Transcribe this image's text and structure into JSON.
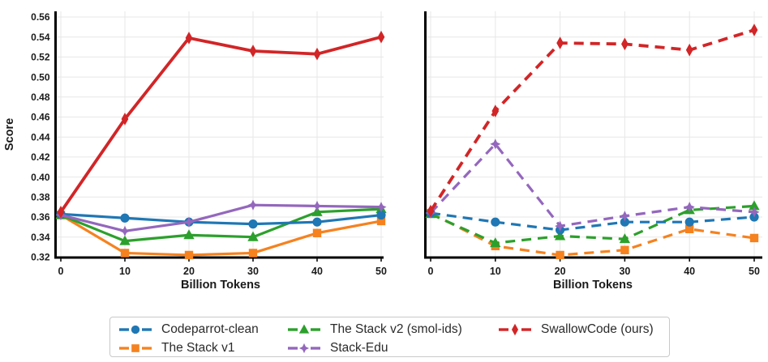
{
  "figure": {
    "ylabel": "Score",
    "xlabel": "Billion Tokens",
    "background": "#ffffff",
    "grid_color": "#e7e7e7",
    "axis_color": "#000000"
  },
  "chart_data": [
    {
      "type": "line",
      "panel": "left",
      "linestyle": "solid",
      "title": "",
      "xlabel": "Billion Tokens",
      "ylabel": "Score",
      "x": [
        0,
        10,
        20,
        30,
        40,
        50
      ],
      "xlim": [
        0,
        50
      ],
      "ylim": [
        0.32,
        0.56
      ],
      "yticks": [
        0.32,
        0.34,
        0.36,
        0.38,
        0.4,
        0.42,
        0.44,
        0.46,
        0.48,
        0.5,
        0.52,
        0.54,
        0.56
      ],
      "xticks": [
        0,
        10,
        20,
        30,
        40,
        50
      ],
      "grid": true,
      "series": [
        {
          "name": "Codeparrot-clean",
          "color": "#1f77b4",
          "marker": "circle",
          "values": [
            0.363,
            0.359,
            0.355,
            0.353,
            0.355,
            0.362
          ]
        },
        {
          "name": "The Stack v1",
          "color": "#f5821f",
          "marker": "square",
          "values": [
            0.362,
            0.324,
            0.322,
            0.324,
            0.344,
            0.356
          ]
        },
        {
          "name": "The Stack v2 (smol-ids)",
          "color": "#2ca02c",
          "marker": "triangle",
          "values": [
            0.362,
            0.336,
            0.342,
            0.34,
            0.365,
            0.368
          ]
        },
        {
          "name": "Stack-Edu",
          "color": "#9467bd",
          "marker": "star",
          "values": [
            0.362,
            0.346,
            0.355,
            0.372,
            0.371,
            0.37
          ]
        },
        {
          "name": "SwallowCode (ours)",
          "color": "#d22527",
          "marker": "diamond",
          "values": [
            0.365,
            0.458,
            0.539,
            0.526,
            0.523,
            0.54
          ]
        }
      ]
    },
    {
      "type": "line",
      "panel": "right",
      "linestyle": "dashed",
      "title": "",
      "xlabel": "Billion Tokens",
      "ylabel": "",
      "x": [
        0,
        10,
        20,
        30,
        40,
        50
      ],
      "xlim": [
        0,
        50
      ],
      "ylim": [
        0.32,
        0.56
      ],
      "yticks": [
        0.32,
        0.34,
        0.36,
        0.38,
        0.4,
        0.42,
        0.44,
        0.46,
        0.48,
        0.5,
        0.52,
        0.54,
        0.56
      ],
      "xticks": [
        0,
        10,
        20,
        30,
        40,
        50
      ],
      "grid": true,
      "series": [
        {
          "name": "Codeparrot-clean",
          "color": "#1f77b4",
          "marker": "circle",
          "values": [
            0.364,
            0.355,
            0.347,
            0.355,
            0.355,
            0.36
          ]
        },
        {
          "name": "The Stack v1",
          "color": "#f5821f",
          "marker": "square",
          "values": [
            0.364,
            0.331,
            0.322,
            0.327,
            0.348,
            0.339
          ]
        },
        {
          "name": "The Stack v2 (smol-ids)",
          "color": "#2ca02c",
          "marker": "triangle",
          "values": [
            0.363,
            0.334,
            0.341,
            0.338,
            0.367,
            0.371
          ]
        },
        {
          "name": "Stack-Edu",
          "color": "#9467bd",
          "marker": "star",
          "values": [
            0.364,
            0.433,
            0.351,
            0.361,
            0.37,
            0.365
          ]
        },
        {
          "name": "SwallowCode (ours)",
          "color": "#d22527",
          "marker": "diamond",
          "values": [
            0.366,
            0.466,
            0.534,
            0.533,
            0.527,
            0.547
          ]
        }
      ]
    }
  ],
  "legend": {
    "entries": [
      {
        "label": "Codeparrot-clean",
        "color": "#1f77b4",
        "marker": "circle"
      },
      {
        "label": "The Stack v1",
        "color": "#f5821f",
        "marker": "square"
      },
      {
        "label": "The Stack v2 (smol-ids)",
        "color": "#2ca02c",
        "marker": "triangle"
      },
      {
        "label": "Stack-Edu",
        "color": "#9467bd",
        "marker": "star"
      },
      {
        "label": "SwallowCode (ours)",
        "color": "#d22527",
        "marker": "diamond"
      }
    ]
  }
}
